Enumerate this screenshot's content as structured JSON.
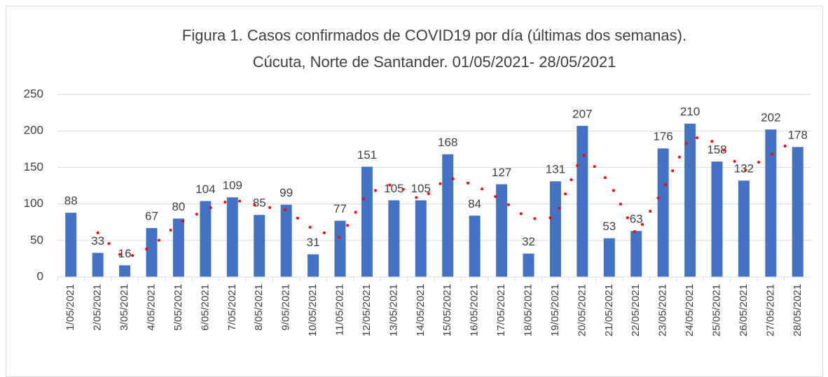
{
  "chart_data": {
    "type": "bar",
    "title": "Figura 1. Casos confirmados de COVID19 por día (últimas dos semanas).",
    "subtitle": "Cúcuta, Norte de Santander. 01/05/2021- 28/05/2021",
    "categories": [
      "1/05/2021",
      "2/05/2021",
      "3/05/2021",
      "4/05/2021",
      "5/05/2021",
      "6/05/2021",
      "7/05/2021",
      "8/05/2021",
      "9/05/2021",
      "10/05/2021",
      "11/05/2021",
      "12/05/2021",
      "13/05/2021",
      "14/05/2021",
      "15/05/2021",
      "16/05/2021",
      "17/05/2021",
      "18/05/2021",
      "19/05/2021",
      "20/05/2021",
      "21/05/2021",
      "22/05/2021",
      "23/05/2021",
      "24/05/2021",
      "25/05/2021",
      "26/05/2021",
      "27/05/2021",
      "28/05/2021"
    ],
    "values": [
      88,
      33,
      16,
      67,
      80,
      104,
      109,
      85,
      99,
      31,
      77,
      151,
      105,
      105,
      168,
      84,
      127,
      32,
      131,
      207,
      53,
      63,
      176,
      210,
      158,
      132,
      202,
      178
    ],
    "color": "#4472c4",
    "trend_line": {
      "color": "#ff0000",
      "style": "dotted",
      "values": [
        null,
        60.5,
        24.5,
        41.5,
        73.5,
        92,
        106.5,
        97,
        92,
        65,
        54,
        114,
        128,
        105,
        136.5,
        126,
        105.5,
        79.5,
        81.5,
        169,
        130,
        58,
        119.5,
        193,
        184,
        145,
        167,
        190
      ]
    },
    "ylim": [
      0,
      250
    ],
    "yticks": [
      0,
      50,
      100,
      150,
      200,
      250
    ],
    "grid": true
  }
}
